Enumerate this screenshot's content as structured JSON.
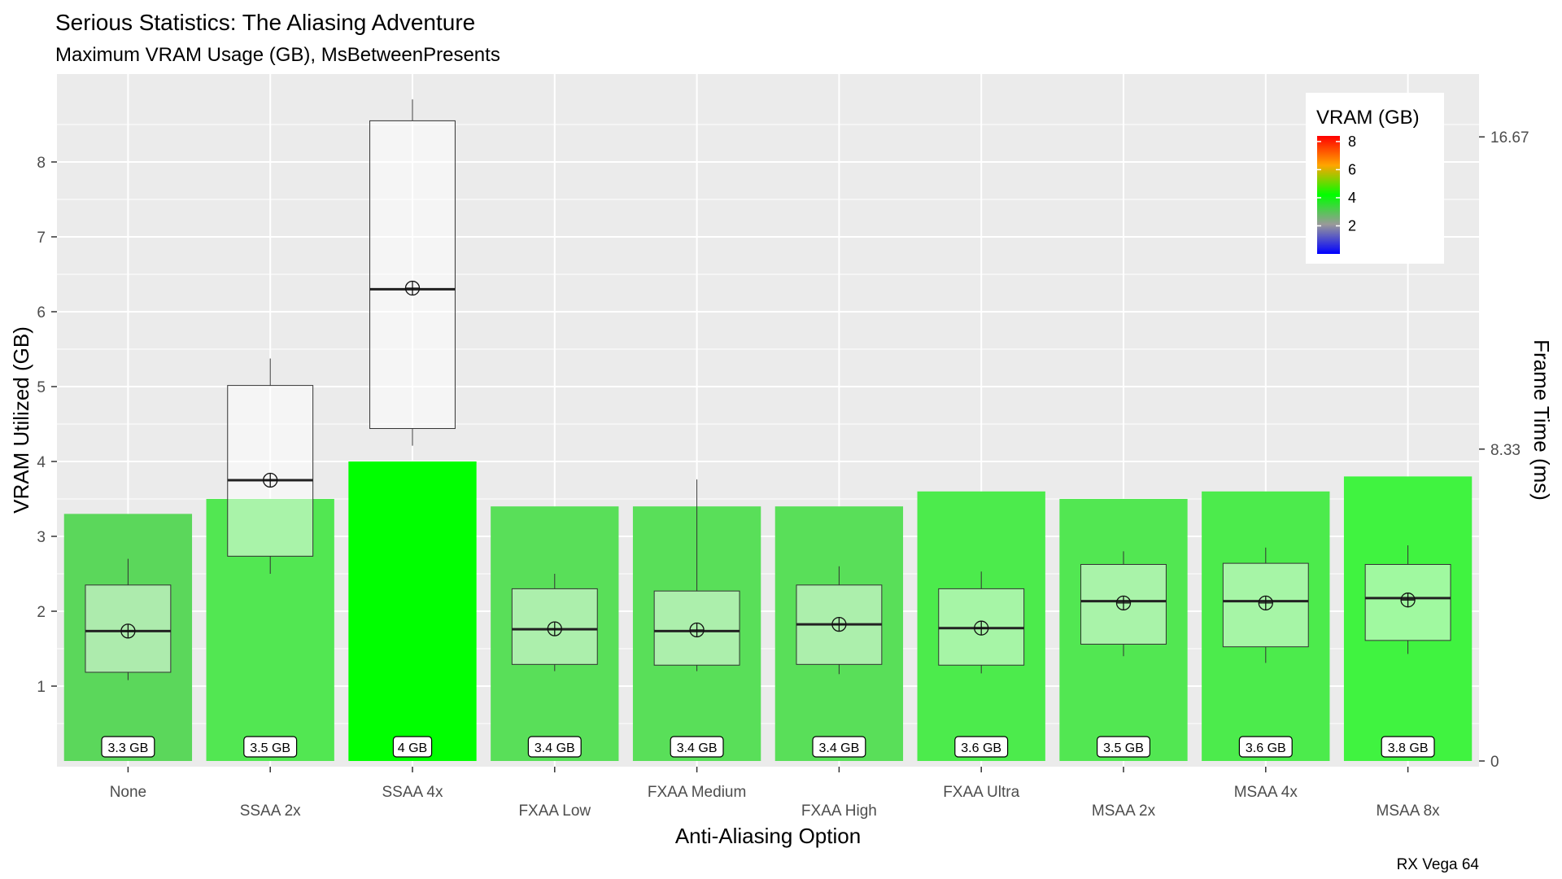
{
  "chart_data": {
    "type": "bar",
    "title": "Serious Statistics: The Aliasing Adventure",
    "subtitle": "Maximum VRAM Usage (GB), MsBetweenPresents",
    "xlabel": "Anti-Aliasing Option",
    "ylabel": "VRAM Utilized (GB)",
    "y2label": "Frame Time (ms)",
    "caption": "RX Vega 64",
    "ylim": [
      0,
      8.9
    ],
    "yticks": [
      1,
      2,
      3,
      4,
      5,
      6,
      7,
      8
    ],
    "y2ticks": [
      {
        "label": "0",
        "value": 0
      },
      {
        "label": "8.33",
        "value": 8.33
      },
      {
        "label": "16.67",
        "value": 16.67
      }
    ],
    "y2_ms_per_gb": 2.0,
    "grid": true,
    "legend": {
      "title": "VRAM (GB)",
      "position": "top-right",
      "ticks": [
        2,
        4,
        6,
        8
      ],
      "range": [
        0,
        8.4
      ],
      "gradient": [
        "#0000ff",
        "#999999",
        "#00ff00",
        "#ffa500",
        "#ff0000"
      ]
    },
    "categories": [
      "None",
      "SSAA 2x",
      "SSAA 4x",
      "FXAA Low",
      "FXAA Medium",
      "FXAA High",
      "FXAA Ultra",
      "MSAA 2x",
      "MSAA 4x",
      "MSAA 8x"
    ],
    "series": [
      {
        "name": "VRAM (GB)",
        "values": [
          3.3,
          3.5,
          4.0,
          3.4,
          3.4,
          3.4,
          3.6,
          3.5,
          3.6,
          3.8
        ],
        "labels": [
          "3.3 GB",
          "3.5 GB",
          "4 GB",
          "3.4 GB",
          "3.4 GB",
          "3.4 GB",
          "3.6 GB",
          "3.5 GB",
          "3.6 GB",
          "3.8 GB"
        ],
        "colors": [
          "#5bd75b",
          "#52e752",
          "#00ff00",
          "#59df59",
          "#59df59",
          "#59df59",
          "#4ceb4c",
          "#52e752",
          "#4ceb4c",
          "#40f340"
        ]
      }
    ],
    "frame_time_boxplots": [
      {
        "min": 2.16,
        "q1": 2.37,
        "median": 3.47,
        "q3": 4.7,
        "max": 5.4,
        "mean": 3.47
      },
      {
        "min": 5.0,
        "q1": 5.47,
        "median": 7.5,
        "q3": 10.03,
        "max": 10.75,
        "mean": 7.5
      },
      {
        "min": 8.42,
        "q1": 8.88,
        "median": 12.6,
        "q3": 17.1,
        "max": 17.67,
        "mean": 12.63
      },
      {
        "min": 2.4,
        "q1": 2.58,
        "median": 3.52,
        "q3": 4.6,
        "max": 5.0,
        "mean": 3.53
      },
      {
        "min": 2.4,
        "q1": 2.56,
        "median": 3.47,
        "q3": 4.54,
        "max": 7.52,
        "mean": 3.5
      },
      {
        "min": 2.32,
        "q1": 2.58,
        "median": 3.65,
        "q3": 4.7,
        "max": 5.2,
        "mean": 3.65
      },
      {
        "min": 2.34,
        "q1": 2.56,
        "median": 3.55,
        "q3": 4.6,
        "max": 5.06,
        "mean": 3.55
      },
      {
        "min": 2.8,
        "q1": 3.12,
        "median": 4.27,
        "q3": 5.25,
        "max": 5.6,
        "mean": 4.22
      },
      {
        "min": 2.62,
        "q1": 3.05,
        "median": 4.27,
        "q3": 5.28,
        "max": 5.7,
        "mean": 4.22
      },
      {
        "min": 2.86,
        "q1": 3.22,
        "median": 4.35,
        "q3": 5.25,
        "max": 5.76,
        "mean": 4.3
      }
    ]
  }
}
